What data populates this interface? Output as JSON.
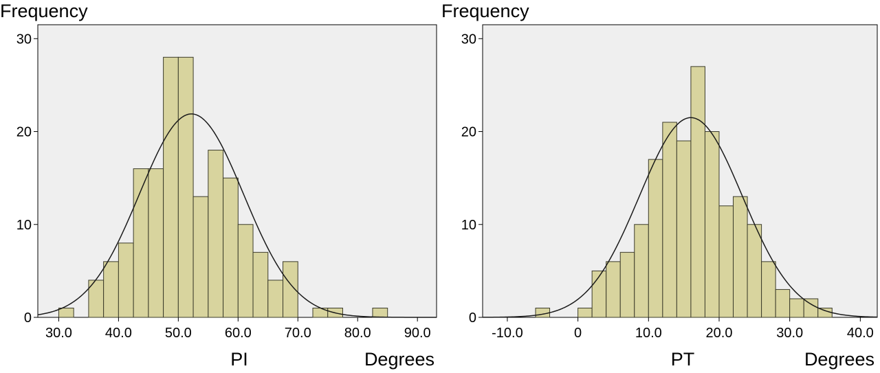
{
  "colors": {
    "bar": "#d8d49e",
    "bar_stroke": "#3b3b2a",
    "plot_bg": "#efefef",
    "curve": "#1a1a1a"
  },
  "chart_data": [
    {
      "type": "bar",
      "xlabel": "PI",
      "unit_label": "Degrees",
      "ylabel": "Frequency",
      "xlim": [
        26.5,
        93.2
      ],
      "ylim": [
        0,
        31.5
      ],
      "xticks": [
        "30.0",
        "40.0",
        "50.0",
        "60.0",
        "70.0",
        "80.0",
        "90.0"
      ],
      "xtick_values": [
        30,
        40,
        50,
        60,
        70,
        80,
        90
      ],
      "yticks": [
        0,
        10,
        20,
        30
      ],
      "bin_width": 2.5,
      "bins": [
        {
          "x0": 30.0,
          "x1": 32.5,
          "count": 1
        },
        {
          "x0": 35.0,
          "x1": 37.5,
          "count": 4
        },
        {
          "x0": 37.5,
          "x1": 40.0,
          "count": 6
        },
        {
          "x0": 40.0,
          "x1": 42.5,
          "count": 8
        },
        {
          "x0": 42.5,
          "x1": 45.0,
          "count": 16
        },
        {
          "x0": 45.0,
          "x1": 47.5,
          "count": 16
        },
        {
          "x0": 47.5,
          "x1": 50.0,
          "count": 28
        },
        {
          "x0": 50.0,
          "x1": 52.5,
          "count": 28
        },
        {
          "x0": 52.5,
          "x1": 55.0,
          "count": 13
        },
        {
          "x0": 55.0,
          "x1": 57.5,
          "count": 18
        },
        {
          "x0": 57.5,
          "x1": 60.0,
          "count": 15
        },
        {
          "x0": 60.0,
          "x1": 62.5,
          "count": 10
        },
        {
          "x0": 62.5,
          "x1": 65.0,
          "count": 7
        },
        {
          "x0": 65.0,
          "x1": 67.5,
          "count": 4
        },
        {
          "x0": 67.5,
          "x1": 70.0,
          "count": 6
        },
        {
          "x0": 72.5,
          "x1": 75.0,
          "count": 1
        },
        {
          "x0": 75.0,
          "x1": 77.5,
          "count": 1
        },
        {
          "x0": 82.5,
          "x1": 85.0,
          "count": 1
        }
      ],
      "normal_curve": {
        "mean": 52.2,
        "sd": 8.7,
        "peak": 21.9
      },
      "grid": false
    },
    {
      "type": "bar",
      "xlabel": "PT",
      "unit_label": "Degrees",
      "ylabel": "Frequency",
      "xlim": [
        -13.5,
        42.4
      ],
      "ylim": [
        0,
        31.5
      ],
      "xticks": [
        "-10.0",
        "0",
        "10.0",
        "20.0",
        "30.0",
        "40.0"
      ],
      "xtick_values": [
        -10,
        0,
        10,
        20,
        30,
        40
      ],
      "yticks": [
        0,
        10,
        20,
        30
      ],
      "bin_width": 2.0,
      "bins": [
        {
          "x0": -6.0,
          "x1": -4.0,
          "count": 1
        },
        {
          "x0": 0.0,
          "x1": 2.0,
          "count": 1
        },
        {
          "x0": 2.0,
          "x1": 4.0,
          "count": 5
        },
        {
          "x0": 4.0,
          "x1": 6.0,
          "count": 6
        },
        {
          "x0": 6.0,
          "x1": 8.0,
          "count": 7
        },
        {
          "x0": 8.0,
          "x1": 10.0,
          "count": 10
        },
        {
          "x0": 10.0,
          "x1": 12.0,
          "count": 17
        },
        {
          "x0": 12.0,
          "x1": 14.0,
          "count": 21
        },
        {
          "x0": 14.0,
          "x1": 16.0,
          "count": 19
        },
        {
          "x0": 16.0,
          "x1": 18.0,
          "count": 27
        },
        {
          "x0": 18.0,
          "x1": 20.0,
          "count": 20
        },
        {
          "x0": 20.0,
          "x1": 22.0,
          "count": 12
        },
        {
          "x0": 22.0,
          "x1": 24.0,
          "count": 13
        },
        {
          "x0": 24.0,
          "x1": 26.0,
          "count": 10
        },
        {
          "x0": 26.0,
          "x1": 28.0,
          "count": 6
        },
        {
          "x0": 28.0,
          "x1": 30.0,
          "count": 3
        },
        {
          "x0": 30.0,
          "x1": 32.0,
          "count": 2
        },
        {
          "x0": 32.0,
          "x1": 34.0,
          "count": 2
        },
        {
          "x0": 34.0,
          "x1": 36.0,
          "count": 1
        }
      ],
      "normal_curve": {
        "mean": 16.0,
        "sd": 7.3,
        "peak": 21.5
      },
      "grid": false
    }
  ]
}
